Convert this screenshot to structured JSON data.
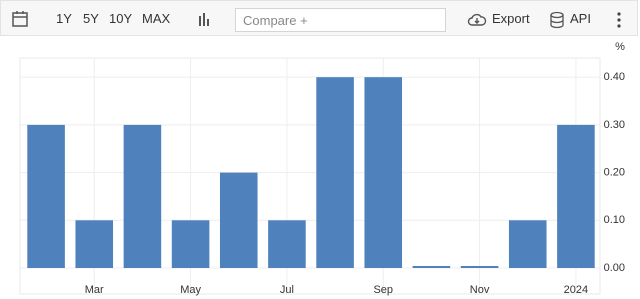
{
  "toolbar": {
    "ranges": [
      "1Y",
      "5Y",
      "10Y",
      "MAX"
    ],
    "compare": "Compare +",
    "export": "Export",
    "api": "API"
  },
  "chart_data": {
    "type": "bar",
    "y_unit": "%",
    "categories": [
      null,
      "Mar",
      null,
      "May",
      null,
      "Jul",
      null,
      "Sep",
      null,
      "Nov",
      null,
      "2024"
    ],
    "values": [
      0.3,
      0.1,
      0.3,
      0.1,
      0.2,
      0.1,
      0.4,
      0.4,
      0,
      0,
      0.1,
      0.3
    ],
    "color": "#4f81bd",
    "ylim": [
      0,
      0.436
    ],
    "yticks": [
      {
        "value": 0,
        "label": "0.00"
      },
      {
        "value": 0.1,
        "label": "0.10"
      },
      {
        "value": 0.2,
        "label": "0.20"
      },
      {
        "value": 0.3,
        "label": "0.30"
      },
      {
        "value": 0.4,
        "label": "0.40"
      }
    ],
    "grid": true
  }
}
